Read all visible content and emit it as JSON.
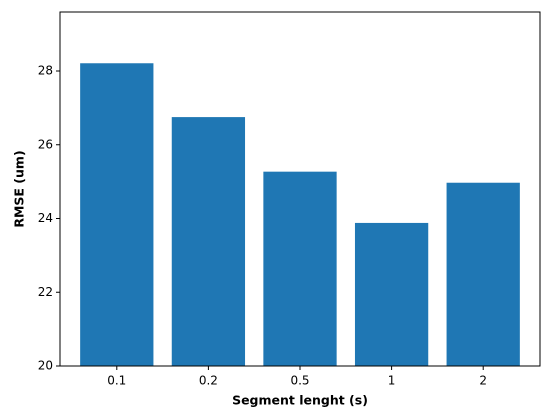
{
  "chart_data": {
    "type": "bar",
    "x_label": "Segment lenght (s)",
    "y_label": "RMSE (um)",
    "categories": [
      "0.1",
      "0.2",
      "0.5",
      "1",
      "2"
    ],
    "values": [
      28.21,
      26.75,
      25.27,
      23.88,
      24.97
    ],
    "color": "#1f77b4",
    "ylim": [
      20,
      29.6
    ],
    "yticks": [
      20,
      22,
      24,
      26,
      28
    ]
  }
}
